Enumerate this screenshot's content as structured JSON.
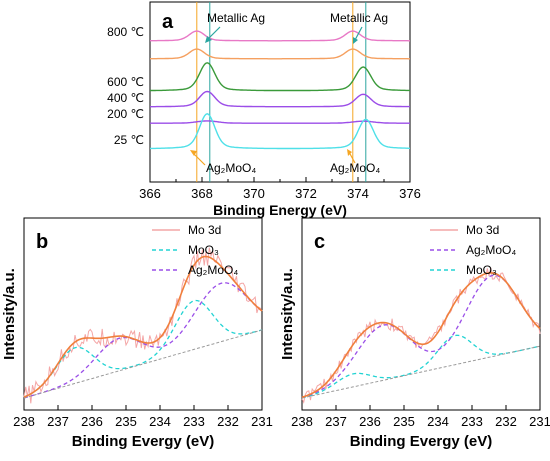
{
  "chart_data": [
    {
      "id": "a",
      "panel_label": "a",
      "type": "line",
      "xlabel": "Binding Energy (eV)",
      "ylabel": "",
      "xlim": [
        366,
        376
      ],
      "x_ticks": [
        "366",
        "368",
        "370",
        "372",
        "374",
        "376"
      ],
      "reference_lines": [
        {
          "x": 367.8,
          "color": "#f5a623"
        },
        {
          "x": 368.3,
          "color": "#2aa5a0"
        },
        {
          "x": 373.8,
          "color": "#f5a623"
        },
        {
          "x": 374.3,
          "color": "#2aa5a0"
        }
      ],
      "annotations": {
        "metallic_left": "Metallic Ag",
        "metallic_right": "Metallic Ag",
        "ag2moo4_left": "Ag₂MoO₄",
        "ag2moo4_right": "Ag₂MoO₄"
      },
      "series": [
        {
          "name": "800 ℃",
          "color": "#e879c6",
          "peaks": [
            {
              "center": 367.8,
              "height": 0.35
            },
            {
              "center": 373.8,
              "height": 0.35
            }
          ]
        },
        {
          "name": "",
          "color": "#f5a060",
          "peaks": [
            {
              "center": 367.8,
              "height": 0.35
            },
            {
              "center": 373.8,
              "height": 0.35
            }
          ]
        },
        {
          "name": "600 ℃",
          "color": "#3a9a3a",
          "peaks": [
            {
              "center": 368.2,
              "height": 1.0
            },
            {
              "center": 374.2,
              "height": 0.85
            }
          ]
        },
        {
          "name": "400 ℃",
          "color": "#9b4de8",
          "peaks": [
            {
              "center": 368.2,
              "height": 0.55
            },
            {
              "center": 374.2,
              "height": 0.45
            }
          ]
        },
        {
          "name": "200 ℃",
          "color": "#9b4de8",
          "peaks": []
        },
        {
          "name": "25 ℃",
          "color": "#4fe0e8",
          "peaks": [
            {
              "center": 368.2,
              "height": 1.25
            },
            {
              "center": 374.3,
              "height": 1.05
            }
          ]
        }
      ]
    },
    {
      "id": "b",
      "panel_label": "b",
      "type": "line",
      "xlabel": "Binding Evergy (eV)",
      "ylabel": "Intensity/a.u.",
      "xlim": [
        238,
        231
      ],
      "x_ticks": [
        "238",
        "237",
        "236",
        "235",
        "234",
        "233",
        "232",
        "231"
      ],
      "legend": [
        {
          "label": "Mo 3d",
          "color": "#f4a6a6",
          "style": "solid"
        },
        {
          "label": "MoO₃",
          "color": "#22d3d3",
          "style": "dashed"
        },
        {
          "label": "Ag₂MoO₄",
          "color": "#9a4ee8",
          "style": "dashed"
        }
      ],
      "baseline": [
        {
          "x": 238,
          "y": 0.0
        },
        {
          "x": 231,
          "y": 0.42
        }
      ],
      "components": [
        {
          "name": "MoO₃",
          "color": "#22d3d3",
          "peaks": [
            {
              "center": 236.5,
              "height": 0.22,
              "width": 0.55
            },
            {
              "center": 233.0,
              "height": 0.3,
              "width": 0.55
            }
          ]
        },
        {
          "name": "Ag₂MoO₄",
          "color": "#9a4ee8",
          "peaks": [
            {
              "center": 235.2,
              "height": 0.2,
              "width": 0.7
            },
            {
              "center": 232.2,
              "height": 0.36,
              "width": 0.8
            }
          ]
        }
      ],
      "raw_noise_amplitude": 0.06
    },
    {
      "id": "c",
      "panel_label": "c",
      "type": "line",
      "xlabel": "Binding Evergy (eV)",
      "ylabel": "Intensity/a.u.",
      "xlim": [
        238,
        231
      ],
      "x_ticks": [
        "238",
        "237",
        "236",
        "235",
        "234",
        "233",
        "232",
        "231"
      ],
      "legend": [
        {
          "label": "Mo 3d",
          "color": "#f4a6a6",
          "style": "solid"
        },
        {
          "label": "Ag₂MoO₄",
          "color": "#9a4ee8",
          "style": "dashed"
        },
        {
          "label": "MoO₃",
          "color": "#22d3d3",
          "style": "dashed"
        }
      ],
      "baseline": [
        {
          "x": 238,
          "y": 0.0
        },
        {
          "x": 231,
          "y": 0.32
        }
      ],
      "components": [
        {
          "name": "MoO₃",
          "color": "#22d3d3",
          "peaks": [
            {
              "center": 236.5,
              "height": 0.08,
              "width": 0.5
            },
            {
              "center": 233.5,
              "height": 0.18,
              "width": 0.5
            }
          ]
        },
        {
          "name": "Ag₂MoO₄",
          "color": "#9a4ee8",
          "peaks": [
            {
              "center": 235.6,
              "height": 0.34,
              "width": 0.8
            },
            {
              "center": 232.4,
              "height": 0.5,
              "width": 0.8
            }
          ]
        }
      ],
      "raw_noise_amplitude": 0.04
    }
  ]
}
